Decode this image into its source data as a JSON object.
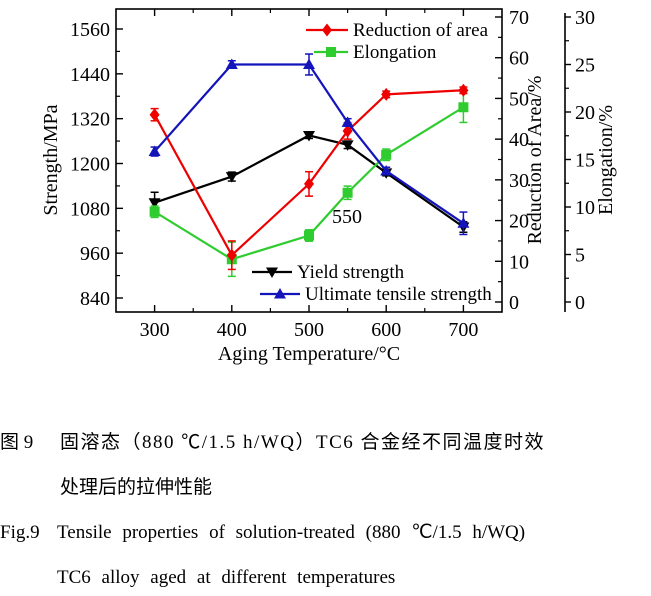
{
  "chart_data": {
    "type": "line",
    "title": "",
    "x": [
      300,
      400,
      500,
      550,
      600,
      700
    ],
    "x_axis": {
      "label": "Aging Temperature/°C",
      "ticks": [
        300,
        400,
        500,
        600,
        700
      ],
      "minor_ticks": [
        350,
        450,
        550,
        650
      ],
      "range": [
        250,
        750
      ]
    },
    "left_axis": {
      "label": "Strength/MPa",
      "ticks": [
        840,
        960,
        1080,
        1200,
        1320,
        1440,
        1560
      ],
      "range": [
        840,
        1560
      ]
    },
    "right_axis1": {
      "label": "Reduction of Area/%",
      "ticks": [
        0,
        10,
        20,
        30,
        40,
        50,
        60,
        70
      ],
      "range": [
        0,
        70
      ]
    },
    "right_axis2": {
      "label": "Elongation/%",
      "ticks": [
        0,
        5,
        10,
        15,
        20,
        25,
        30
      ],
      "range": [
        0,
        30
      ]
    },
    "annotation": {
      "text": "550"
    },
    "series": [
      {
        "name": "Reduction of area",
        "axis": "right1",
        "legend": "top",
        "color": "#ee0000",
        "marker": "diamond",
        "values": [
          46,
          11.5,
          29,
          42,
          51,
          52
        ],
        "errors": [
          1.5,
          3.5,
          3,
          2,
          0.8,
          0.8
        ]
      },
      {
        "name": "Elongation",
        "axis": "right2",
        "legend": "top",
        "color": "#2ecc2e",
        "marker": "square",
        "values": [
          9.5,
          4.5,
          7,
          11.5,
          15.5,
          20.5
        ],
        "errors": [
          0.6,
          1.8,
          0.6,
          0.7,
          0.6,
          1.6
        ]
      },
      {
        "name": "Yield strength",
        "axis": "left",
        "legend": "bottom",
        "color": "#000000",
        "marker": "triangle-down",
        "values": [
          1095,
          1165,
          1275,
          1250,
          1175,
          1030
        ],
        "errors": [
          28,
          12,
          8,
          10,
          8,
          14
        ]
      },
      {
        "name": "Ultimate tensile strength",
        "axis": "left",
        "legend": "bottom",
        "color": "#1414bb",
        "marker": "triangle-up",
        "values": [
          1232,
          1465,
          1465,
          1310,
          1180,
          1040
        ],
        "errors": [
          12,
          10,
          28,
          10,
          10,
          30
        ]
      }
    ],
    "legend_position": {
      "top": "inside top-right",
      "bottom": "inside bottom-center"
    },
    "grid": false
  },
  "caption": {
    "zh": {
      "label": "图 9",
      "line1": "固溶态（880 ℃/1.5 h/WQ）TC6 合金经不同温度时效",
      "line2": "处理后的拉伸性能"
    },
    "en": {
      "label": "Fig.9",
      "line1": "Tensile properties of solution-treated (880 ℃/1.5 h/WQ)",
      "line2": "TC6 alloy aged at different temperatures"
    }
  }
}
